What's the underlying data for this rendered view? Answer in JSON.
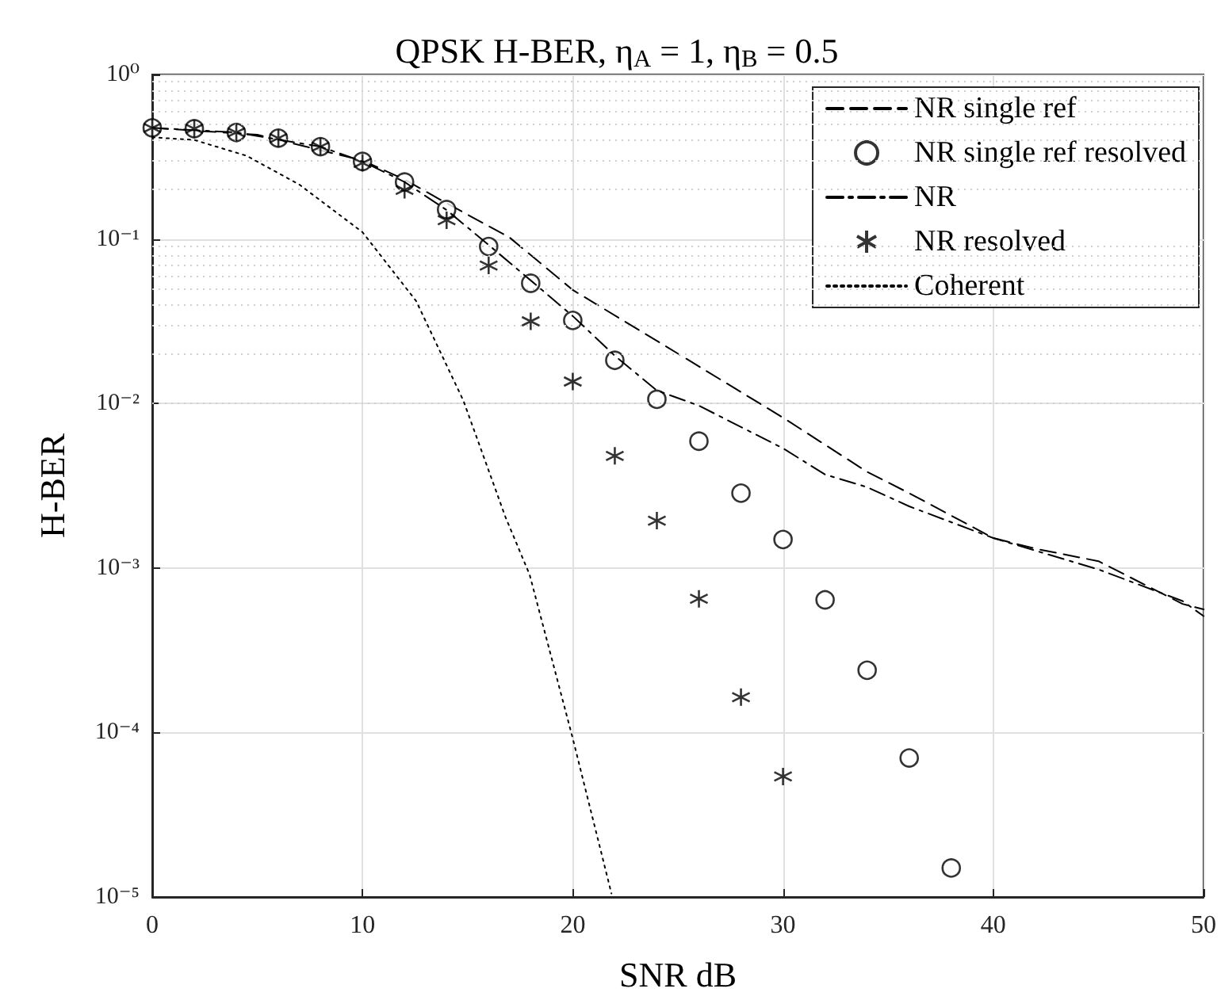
{
  "chart_data": {
    "type": "line",
    "title": "QPSK H-BER, η$_{A}$ = 1, η$_{B}$ = 0.5",
    "xlabel": "SNR dB",
    "ylabel": "H-BER",
    "log": "y",
    "grid": true,
    "legend": "top right",
    "xlim": [
      0,
      50
    ],
    "xticks": [
      0,
      10,
      20,
      30,
      40,
      50
    ],
    "ylim": [
      1e-05,
      1
    ],
    "yticks": [
      {
        "value": 1e-05,
        "label": "10⁻⁵"
      },
      {
        "value": 0.0001,
        "label": "10⁻⁴"
      },
      {
        "value": 0.001,
        "label": "10⁻³"
      },
      {
        "value": 0.01,
        "label": "10⁻²"
      },
      {
        "value": 0.1,
        "label": "10⁻¹"
      },
      {
        "value": 1,
        "label": "10⁰"
      }
    ],
    "series": [
      {
        "name": "NR single ref",
        "type": "line",
        "line_style": "dashed",
        "marker": "none",
        "color": "#000000",
        "x": [
          0,
          5,
          10,
          12,
          14,
          17,
          20,
          25,
          30,
          34,
          36,
          40,
          42,
          45,
          49,
          50
        ],
        "values": [
          0.474,
          0.43,
          0.3,
          0.23,
          0.165,
          0.102,
          0.049,
          0.0201,
          0.0082,
          0.00384,
          0.00285,
          0.00152,
          0.00131,
          0.0011,
          0.000605,
          0.00056
        ]
      },
      {
        "name": "NR single ref resolved",
        "type": "scatter",
        "marker": "circle",
        "color": "#000000",
        "x": [
          0,
          2,
          4,
          6,
          8,
          10,
          12,
          14,
          16,
          18,
          20,
          22,
          24,
          26,
          28,
          30,
          32,
          34,
          36,
          38
        ],
        "values": [
          0.474,
          0.468,
          0.444,
          0.41,
          0.364,
          0.296,
          0.222,
          0.151,
          0.09,
          0.0538,
          0.032,
          0.0183,
          0.0106,
          0.0059,
          0.00285,
          0.00149,
          0.00064,
          0.000239,
          7e-05,
          1.5e-05
        ]
      },
      {
        "name": "NR",
        "type": "line",
        "line_style": "dashdot",
        "marker": "none",
        "color": "#000000",
        "x": [
          0,
          4,
          8,
          10,
          12,
          14,
          16,
          18,
          20,
          22,
          24,
          26,
          30,
          32,
          34,
          36,
          40,
          45,
          49,
          50
        ],
        "values": [
          0.474,
          0.444,
          0.364,
          0.296,
          0.222,
          0.15,
          0.092,
          0.056,
          0.034,
          0.0195,
          0.012,
          0.0097,
          0.00534,
          0.0037,
          0.0031,
          0.00237,
          0.00152,
          0.00098,
          0.00063,
          0.00051
        ]
      },
      {
        "name": "NR resolved",
        "type": "scatter",
        "marker": "cross",
        "color": "#000000",
        "x": [
          0,
          2,
          4,
          6,
          8,
          10,
          12,
          14,
          16,
          18,
          20,
          22,
          24,
          26,
          28,
          30
        ],
        "values": [
          0.474,
          0.468,
          0.444,
          0.41,
          0.364,
          0.29,
          0.199,
          0.13,
          0.069,
          0.0316,
          0.0136,
          0.0048,
          0.00194,
          0.00065,
          0.000164,
          5.4e-05
        ]
      },
      {
        "name": "Coherent",
        "type": "line",
        "line_style": "dotted",
        "marker": "none",
        "color": "#000000",
        "x": [
          0,
          2,
          4.5,
          7,
          10,
          12.55,
          14.8,
          16.8,
          17.95,
          20,
          21.84
        ],
        "values": [
          0.415,
          0.4,
          0.32,
          0.214,
          0.11,
          0.042,
          0.0104,
          0.00204,
          0.00091,
          9.2e-05,
          1.05e-05
        ]
      }
    ]
  }
}
